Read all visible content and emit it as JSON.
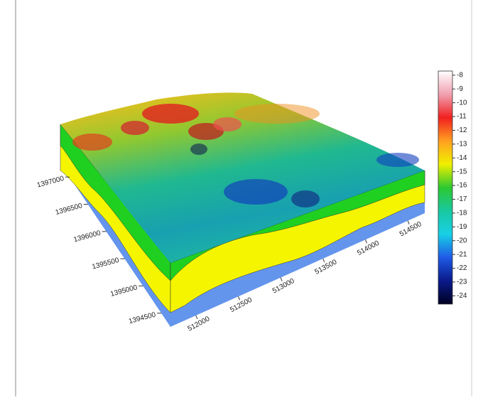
{
  "chart_data": {
    "type": "surface3d",
    "xlim": [
      511700,
      514700
    ],
    "xticks": [
      512000,
      512500,
      513000,
      513500,
      514000,
      514500
    ],
    "ylim": [
      1394250,
      1397250
    ],
    "yticks": [
      1394500,
      1395000,
      1395500,
      1396000,
      1396500,
      1397000
    ],
    "clim": [
      -24.6,
      -7.7
    ],
    "cticks": [
      -8,
      -9,
      -10,
      -11,
      -12,
      -13,
      -14,
      -15,
      -16,
      -17,
      -18,
      -19,
      -20,
      -21,
      -22,
      -23,
      -24
    ],
    "colormap": [
      "#000022",
      "#0a1a8a",
      "#1e5ae6",
      "#18d0e6",
      "#18c8a0",
      "#2cc830",
      "#f0f000",
      "#ffa020",
      "#f02020",
      "#f0a0b0",
      "#ffffff"
    ]
  }
}
